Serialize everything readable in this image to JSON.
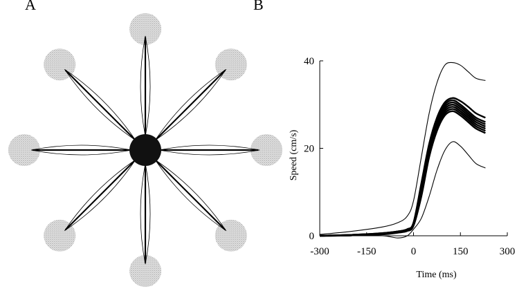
{
  "panel_labels": {
    "a": "A",
    "b": "B"
  },
  "colors": {
    "target": "#c8c8c8",
    "center": "#111111",
    "ink": "#000000"
  },
  "chart_data": [
    {
      "type": "diagram",
      "panel": "A",
      "center_target": "filled",
      "peripheral_targets": 8,
      "target_directions_deg": [
        0,
        45,
        90,
        135,
        180,
        225,
        270,
        315
      ]
    },
    {
      "type": "line",
      "panel": "B",
      "xlabel": "Time (ms)",
      "ylabel": "Speed (cm/s)",
      "xlim": [
        -300,
        300
      ],
      "ylim": [
        0,
        40
      ],
      "x_ticks": [
        -300,
        -150,
        0,
        150,
        300
      ],
      "y_ticks": [
        0,
        20,
        40
      ],
      "grid": false,
      "x": [
        -300,
        -200,
        -100,
        -50,
        -20,
        0,
        25,
        50,
        75,
        100,
        125,
        150,
        175,
        200,
        230
      ],
      "series": [
        {
          "values": [
            0.3,
            1.0,
            2.0,
            3.0,
            4.5,
            8.0,
            18.0,
            28.0,
            35.0,
            39.0,
            39.6,
            39.0,
            37.5,
            36.0,
            35.5
          ]
        },
        {
          "values": [
            0.0,
            0.2,
            0.6,
            1.0,
            1.5,
            3.0,
            12.0,
            21.0,
            27.0,
            30.5,
            31.5,
            30.8,
            29.5,
            28.0,
            27.0
          ]
        },
        {
          "values": [
            0.0,
            0.2,
            0.6,
            1.0,
            1.5,
            3.0,
            11.5,
            20.5,
            26.5,
            30.0,
            31.0,
            30.0,
            28.5,
            27.0,
            26.0
          ]
        },
        {
          "values": [
            0.0,
            0.2,
            0.5,
            0.9,
            1.4,
            2.8,
            11.0,
            20.0,
            26.0,
            29.5,
            30.5,
            29.5,
            28.0,
            26.5,
            25.5
          ]
        },
        {
          "values": [
            0.0,
            0.1,
            0.5,
            0.9,
            1.3,
            2.7,
            10.5,
            19.5,
            25.5,
            29.0,
            30.0,
            29.0,
            27.5,
            26.0,
            25.0
          ]
        },
        {
          "values": [
            0.0,
            0.1,
            0.4,
            0.8,
            1.2,
            2.5,
            10.0,
            19.0,
            25.0,
            28.5,
            29.5,
            28.5,
            27.0,
            25.5,
            24.5
          ]
        },
        {
          "values": [
            0.0,
            0.1,
            0.4,
            0.8,
            1.2,
            2.5,
            9.5,
            18.5,
            24.5,
            28.0,
            29.0,
            28.0,
            26.5,
            25.0,
            24.0
          ]
        },
        {
          "values": [
            0.0,
            0.1,
            0.3,
            0.7,
            1.1,
            2.3,
            9.0,
            18.0,
            24.0,
            27.5,
            28.5,
            27.5,
            26.0,
            24.5,
            23.5
          ]
        },
        {
          "values": [
            0.0,
            0.0,
            0.0,
            -0.5,
            0.0,
            1.5,
            4.0,
            9.0,
            15.0,
            19.5,
            21.5,
            20.5,
            18.5,
            16.5,
            15.5
          ]
        }
      ]
    }
  ]
}
